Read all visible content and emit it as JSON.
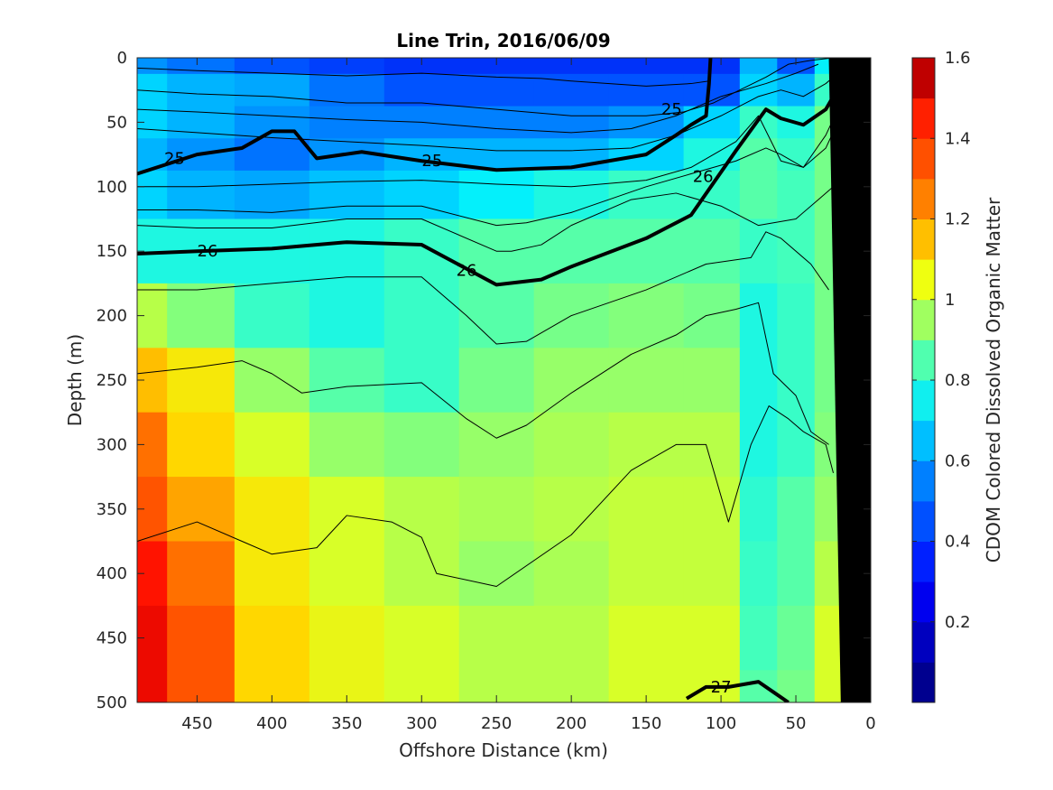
{
  "chart_data": {
    "type": "heatmap",
    "title": "Line Trin, 2016/06/09",
    "xlabel": "Offshore Distance (km)",
    "ylabel": "Depth (m)",
    "colorbar_label": "CDOM Colored Dissolved Organic Matter",
    "x_reversed": true,
    "y_reversed": true,
    "xlim": [
      0,
      490
    ],
    "ylim": [
      0,
      500
    ],
    "x_ticks": [
      450,
      400,
      350,
      300,
      250,
      200,
      150,
      100,
      50,
      0
    ],
    "x_tick_labels": [
      "450",
      "400",
      "350",
      "300",
      "250",
      "200",
      "150",
      "100",
      "50",
      "0"
    ],
    "y_ticks": [
      0,
      50,
      100,
      150,
      200,
      250,
      300,
      350,
      400,
      450,
      500
    ],
    "y_tick_labels": [
      "0",
      "50",
      "100",
      "150",
      "200",
      "250",
      "300",
      "350",
      "400",
      "450",
      "500"
    ],
    "clim": [
      0,
      1.6
    ],
    "colorbar_ticks": [
      0.2,
      0.4,
      0.6,
      0.8,
      1,
      1.2,
      1.4,
      1.6
    ],
    "colorbar_tick_labels": [
      "0.2",
      "0.4",
      "0.6",
      "0.8",
      "1",
      "1.2",
      "1.4",
      "1.6"
    ],
    "colormap": [
      "#00008f",
      "#0000ef",
      "#0050ff",
      "#00a0ff",
      "#00efff",
      "#40ffbf",
      "#8fff70",
      "#dfff20",
      "#ffdf00",
      "#ffa000",
      "#ff6000",
      "#ff1000",
      "#cf0000",
      "#a00000"
    ],
    "colorbar_levels": [
      {
        "lo": 0.0,
        "hi": 0.1,
        "color": "#00008f"
      },
      {
        "lo": 0.1,
        "hi": 0.2,
        "color": "#0000bf"
      },
      {
        "lo": 0.2,
        "hi": 0.3,
        "color": "#0000ef"
      },
      {
        "lo": 0.3,
        "hi": 0.4,
        "color": "#0020ff"
      },
      {
        "lo": 0.4,
        "hi": 0.5,
        "color": "#0050ff"
      },
      {
        "lo": 0.5,
        "hi": 0.6,
        "color": "#0080ff"
      },
      {
        "lo": 0.6,
        "hi": 0.7,
        "color": "#00bfff"
      },
      {
        "lo": 0.7,
        "hi": 0.8,
        "color": "#10efef"
      },
      {
        "lo": 0.8,
        "hi": 0.9,
        "color": "#50ffaf"
      },
      {
        "lo": 0.9,
        "hi": 1.0,
        "color": "#a0ff60"
      },
      {
        "lo": 1.0,
        "hi": 1.1,
        "color": "#efff10"
      },
      {
        "lo": 1.1,
        "hi": 1.2,
        "color": "#ffbf00"
      },
      {
        "lo": 1.2,
        "hi": 1.3,
        "color": "#ff8000"
      },
      {
        "lo": 1.3,
        "hi": 1.4,
        "color": "#ff5000"
      },
      {
        "lo": 1.4,
        "hi": 1.5,
        "color": "#ff2000"
      },
      {
        "lo": 1.5,
        "hi": 1.6,
        "color": "#bf0000"
      }
    ],
    "grid": {
      "x": [
        490,
        450,
        400,
        350,
        300,
        250,
        200,
        150,
        100,
        75,
        50,
        25,
        0
      ],
      "depth": [
        0,
        25,
        50,
        75,
        100,
        150,
        200,
        250,
        300,
        350,
        400,
        450,
        500
      ],
      "values": [
        [
          0.35,
          0.3,
          0.25,
          0.22,
          0.2,
          0.2,
          0.2,
          0.2,
          0.2,
          0.4,
          0.25,
          0.5,
          0.6
        ],
        [
          0.45,
          0.4,
          0.38,
          0.3,
          0.25,
          0.25,
          0.25,
          0.25,
          0.25,
          0.45,
          0.4,
          0.6,
          0.75
        ],
        [
          0.45,
          0.4,
          0.35,
          0.32,
          0.32,
          0.32,
          0.32,
          0.35,
          0.45,
          0.6,
          0.55,
          0.7,
          0.8
        ],
        [
          0.4,
          0.35,
          0.3,
          0.35,
          0.4,
          0.4,
          0.4,
          0.45,
          0.55,
          0.65,
          0.6,
          0.7,
          0.85
        ],
        [
          0.45,
          0.4,
          0.38,
          0.42,
          0.45,
          0.5,
          0.55,
          0.6,
          0.6,
          0.65,
          0.62,
          0.7,
          0.9
        ],
        [
          0.55,
          0.55,
          0.55,
          0.55,
          0.6,
          0.65,
          0.65,
          0.65,
          0.65,
          0.6,
          0.62,
          0.7,
          0.9
        ],
        [
          0.8,
          0.72,
          0.6,
          0.55,
          0.6,
          0.65,
          0.7,
          0.72,
          0.7,
          0.55,
          0.6,
          0.7,
          0.95
        ],
        [
          1.05,
          0.95,
          0.75,
          0.65,
          0.6,
          0.7,
          0.75,
          0.75,
          0.75,
          0.55,
          0.6,
          0.7,
          0.95
        ],
        [
          1.2,
          1.0,
          0.85,
          0.75,
          0.72,
          0.75,
          0.78,
          0.8,
          0.8,
          0.55,
          0.6,
          0.72,
          0.95
        ],
        [
          1.25,
          1.1,
          0.95,
          0.85,
          0.8,
          0.78,
          0.8,
          0.82,
          0.82,
          0.58,
          0.65,
          0.75,
          1.0
        ],
        [
          1.35,
          1.2,
          0.95,
          0.85,
          0.8,
          0.75,
          0.78,
          0.82,
          0.82,
          0.6,
          0.65,
          0.8,
          1.0
        ],
        [
          1.4,
          1.25,
          1.0,
          0.9,
          0.85,
          0.8,
          0.8,
          0.85,
          0.85,
          0.62,
          0.68,
          0.85,
          1.0
        ],
        [
          1.4,
          1.25,
          1.0,
          0.9,
          0.85,
          0.8,
          0.8,
          0.85,
          0.85,
          0.65,
          0.7,
          0.85,
          1.0
        ]
      ]
    },
    "bathymetry": {
      "x": [
        20,
        28,
        0,
        0
      ],
      "depth": [
        500,
        0,
        0,
        500
      ],
      "color": "#000000"
    },
    "contours": [
      {
        "level": "25",
        "bold": true,
        "x": [
          490,
          450,
          420,
          400,
          385,
          370,
          340,
          300,
          250,
          200,
          150,
          130,
          120,
          110,
          108,
          107
        ],
        "depth": [
          90,
          75,
          70,
          57,
          57,
          78,
          73,
          80,
          87,
          85,
          75,
          60,
          52,
          45,
          20,
          0
        ],
        "labels": [
          {
            "x": 465,
            "depth": 78,
            "text": "25"
          },
          {
            "x": 293,
            "depth": 80,
            "text": "25"
          },
          {
            "x": 133,
            "depth": 40,
            "text": "25"
          }
        ]
      },
      {
        "level": "26",
        "bold": true,
        "x": [
          490,
          450,
          400,
          350,
          300,
          250,
          220,
          200,
          150,
          120,
          90,
          70,
          60,
          45,
          30,
          20,
          12
        ],
        "depth": [
          152,
          150,
          148,
          143,
          145,
          176,
          172,
          162,
          140,
          122,
          72,
          40,
          47,
          52,
          40,
          20,
          3
        ],
        "labels": [
          {
            "x": 443,
            "depth": 150,
            "text": "26"
          },
          {
            "x": 270,
            "depth": 165,
            "text": "26"
          },
          {
            "x": 112,
            "depth": 92,
            "text": "26"
          }
        ]
      },
      {
        "level": "27",
        "bold": true,
        "x": [
          123,
          110,
          95,
          75,
          65,
          55
        ],
        "depth": [
          497,
          488,
          488,
          484,
          492,
          500
        ],
        "labels": [
          {
            "x": 100,
            "depth": 488,
            "text": "27"
          }
        ]
      },
      {
        "level": "",
        "bold": false,
        "x": [
          490,
          450,
          400,
          350,
          300,
          250,
          220,
          200,
          150,
          120,
          108
        ],
        "depth": [
          8,
          10,
          12,
          14,
          12,
          15,
          16,
          18,
          22,
          20,
          18
        ]
      },
      {
        "level": "",
        "bold": false,
        "x": [
          490,
          450,
          400,
          350,
          300,
          250,
          200,
          150,
          125,
          105,
          70,
          55,
          40,
          25
        ],
        "depth": [
          25,
          28,
          30,
          35,
          35,
          40,
          45,
          45,
          42,
          35,
          15,
          5,
          2,
          0
        ]
      },
      {
        "level": "",
        "bold": false,
        "x": [
          490,
          450,
          400,
          350,
          300,
          250,
          200,
          160,
          130,
          100,
          70,
          50,
          35
        ],
        "depth": [
          40,
          42,
          45,
          48,
          50,
          55,
          58,
          55,
          45,
          30,
          20,
          12,
          5
        ]
      },
      {
        "level": "",
        "bold": false,
        "x": [
          490,
          450,
          400,
          350,
          300,
          250,
          200,
          160,
          130,
          100,
          75,
          60,
          45,
          30,
          20
        ],
        "depth": [
          55,
          58,
          62,
          65,
          68,
          72,
          72,
          70,
          60,
          45,
          30,
          25,
          30,
          20,
          10
        ]
      },
      {
        "level": "",
        "bold": false,
        "x": [
          490,
          450,
          400,
          350,
          300,
          250,
          200,
          150,
          120,
          90,
          75,
          60,
          45,
          30,
          22
        ],
        "depth": [
          100,
          100,
          98,
          96,
          95,
          98,
          100,
          95,
          85,
          65,
          45,
          80,
          85,
          60,
          40
        ]
      },
      {
        "level": "",
        "bold": false,
        "x": [
          490,
          450,
          400,
          350,
          300,
          250,
          230,
          200,
          150,
          120,
          90,
          70,
          60,
          45,
          30,
          22
        ],
        "depth": [
          118,
          118,
          120,
          115,
          115,
          130,
          128,
          120,
          100,
          90,
          80,
          70,
          75,
          85,
          70,
          50
        ]
      },
      {
        "level": "",
        "bold": false,
        "x": [
          490,
          450,
          400,
          350,
          300,
          250,
          240,
          220,
          200,
          160,
          130,
          100,
          75,
          50,
          35,
          25
        ],
        "depth": [
          130,
          132,
          132,
          125,
          125,
          150,
          150,
          145,
          130,
          110,
          105,
          115,
          130,
          125,
          110,
          100
        ]
      },
      {
        "level": "",
        "bold": false,
        "x": [
          490,
          450,
          400,
          350,
          300,
          270,
          250,
          230,
          200,
          150,
          110,
          80,
          70,
          60,
          40,
          28
        ],
        "depth": [
          180,
          180,
          175,
          170,
          170,
          200,
          222,
          220,
          200,
          180,
          160,
          155,
          135,
          140,
          160,
          180
        ]
      },
      {
        "level": "",
        "bold": false,
        "x": [
          490,
          450,
          420,
          400,
          380,
          350,
          300,
          270,
          250,
          230,
          200,
          160,
          130,
          110,
          90,
          75,
          65,
          50,
          40,
          28
        ],
        "depth": [
          245,
          240,
          235,
          245,
          260,
          255,
          252,
          280,
          295,
          285,
          260,
          230,
          215,
          200,
          195,
          190,
          245,
          262,
          290,
          300
        ]
      },
      {
        "level": "",
        "bold": false,
        "x": [
          490,
          450,
          420,
          400,
          370,
          350,
          320,
          300,
          290,
          250,
          200,
          160,
          130,
          110,
          95,
          80,
          68,
          55,
          45,
          30,
          25
        ],
        "depth": [
          375,
          360,
          375,
          385,
          380,
          355,
          360,
          372,
          400,
          410,
          370,
          320,
          300,
          300,
          360,
          300,
          270,
          280,
          290,
          300,
          322
        ]
      }
    ]
  }
}
